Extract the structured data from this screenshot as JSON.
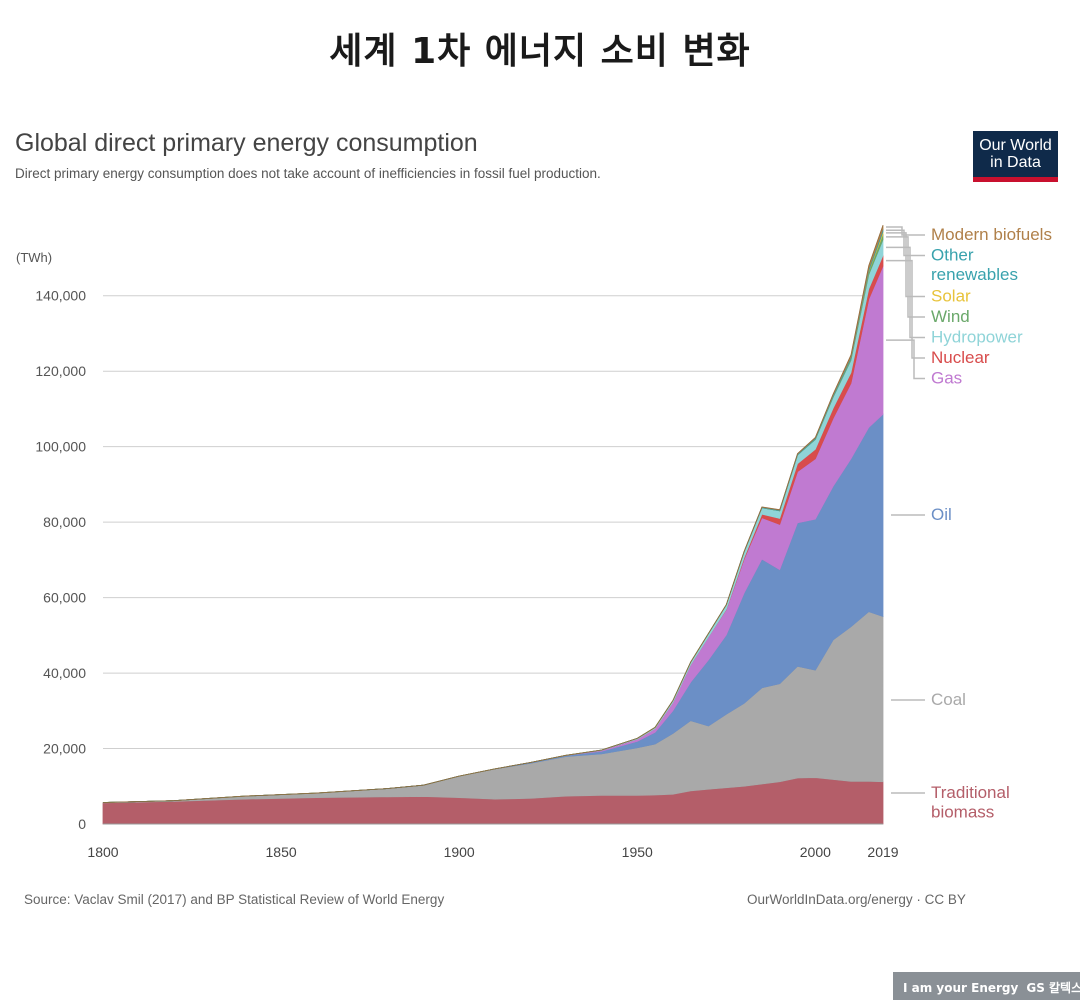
{
  "page_title": "세계 1차 에너지 소비 변화",
  "logo": {
    "line1": "Our World",
    "line2": "in Data"
  },
  "footer": {
    "source": "Source: Vaclav Smil (2017) and BP Statistical Review of World Energy",
    "url": "OurWorldInData.org/energy  · CC BY"
  },
  "brand": {
    "tagline": "I am your Energy",
    "name": "GS 칼텍스"
  },
  "colors": {
    "biomass": "#b45e69",
    "coal": "#a9a9a9",
    "oil": "#6b8fc6",
    "gas": "#c07ad1",
    "nuclear": "#d84c4c",
    "hydropower": "#8fd4d8",
    "wind": "#6aa86a",
    "solar": "#e8c33a",
    "other_renewables": "#39a2ad",
    "modern_biofuels": "#b0804a"
  },
  "chart_data": {
    "type": "area",
    "title": "Global direct primary energy consumption",
    "subtitle": "Direct primary energy consumption does not take account of inefficiencies in fossil fuel production.",
    "ylabel": "(TWh)",
    "ylim": [
      0,
      150000
    ],
    "xlim": [
      1800,
      2019
    ],
    "y_ticks": [
      0,
      20000,
      40000,
      60000,
      80000,
      100000,
      120000,
      140000
    ],
    "y_tick_labels": [
      "0",
      "20,000",
      "40,000",
      "60,000",
      "80,000",
      "100,000",
      "120,000",
      "140,000"
    ],
    "x_ticks": [
      1800,
      1850,
      1900,
      1950,
      2000,
      2019
    ],
    "x_tick_labels": [
      "1800",
      "1850",
      "1900",
      "1950",
      "2000",
      "2019"
    ],
    "grid": true,
    "x": [
      1800,
      1820,
      1840,
      1860,
      1880,
      1890,
      1900,
      1910,
      1920,
      1930,
      1940,
      1950,
      1955,
      1960,
      1965,
      1970,
      1975,
      1980,
      1985,
      1990,
      1995,
      2000,
      2005,
      2010,
      2015,
      2019
    ],
    "series": [
      {
        "key": "biomass",
        "name": "Traditional biomass",
        "values": [
          5600,
          6000,
          6600,
          7000,
          7200,
          7300,
          7000,
          6600,
          6800,
          7400,
          7600,
          7600,
          7700,
          7900,
          8800,
          9200,
          9600,
          10000,
          10600,
          11200,
          12200,
          12300,
          11800,
          11300,
          11300,
          11200
        ]
      },
      {
        "key": "coal",
        "name": "Coal",
        "values": [
          100,
          200,
          800,
          1200,
          2200,
          3000,
          5700,
          8000,
          9300,
          10500,
          11000,
          12600,
          13500,
          16100,
          18600,
          16800,
          19500,
          22000,
          25500,
          26000,
          29600,
          28500,
          37000,
          41000,
          45000,
          43800
        ]
      },
      {
        "key": "oil",
        "name": "Oil",
        "values": [
          0,
          0,
          0,
          0,
          0,
          0,
          0,
          0,
          200,
          300,
          700,
          1700,
          3100,
          6000,
          10200,
          17500,
          21000,
          29200,
          34100,
          30200,
          38000,
          40000,
          40700,
          44500,
          48800,
          53600
        ]
      },
      {
        "key": "gas",
        "name": "Gas",
        "values": [
          0,
          0,
          0,
          0,
          0,
          0,
          0,
          0,
          0,
          0,
          200,
          600,
          1000,
          2200,
          4600,
          6100,
          6700,
          9000,
          11000,
          12000,
          13600,
          16000,
          18000,
          20000,
          34000,
          39300
        ]
      },
      {
        "key": "nuclear",
        "name": "Nuclear",
        "values": [
          0,
          0,
          0,
          0,
          0,
          0,
          0,
          0,
          0,
          0,
          0,
          0,
          0,
          0,
          0,
          0,
          100,
          400,
          900,
          1600,
          2100,
          2500,
          2700,
          2800,
          2700,
          2800
        ]
      },
      {
        "key": "hydropower",
        "name": "Hydropower",
        "values": [
          0,
          0,
          0,
          0,
          0,
          0,
          0,
          0,
          0,
          0,
          100,
          200,
          300,
          500,
          700,
          900,
          1200,
          1500,
          1700,
          2000,
          2300,
          2600,
          2900,
          3300,
          3800,
          4200
        ]
      },
      {
        "key": "wind",
        "name": "Wind",
        "values": [
          0,
          0,
          0,
          0,
          0,
          0,
          0,
          0,
          0,
          0,
          0,
          0,
          0,
          0,
          0,
          0,
          0,
          0,
          0,
          0,
          0,
          100,
          200,
          350,
          800,
          1400
        ]
      },
      {
        "key": "solar",
        "name": "Solar",
        "values": [
          0,
          0,
          0,
          0,
          0,
          0,
          0,
          0,
          0,
          0,
          0,
          0,
          0,
          0,
          0,
          0,
          0,
          0,
          0,
          0,
          0,
          0,
          0,
          50,
          200,
          700
        ]
      },
      {
        "key": "other_renewables",
        "name": "Other renewables",
        "values": [
          0,
          0,
          0,
          0,
          0,
          0,
          0,
          0,
          0,
          0,
          0,
          0,
          0,
          0,
          0,
          0,
          0,
          100,
          150,
          200,
          250,
          300,
          400,
          500,
          600,
          700
        ]
      },
      {
        "key": "modern_biofuels",
        "name": "Modern biofuels",
        "values": [
          0,
          0,
          0,
          0,
          0,
          0,
          0,
          0,
          0,
          0,
          0,
          0,
          0,
          0,
          0,
          0,
          0,
          50,
          80,
          100,
          120,
          150,
          250,
          500,
          800,
          1000
        ]
      }
    ],
    "legend": [
      {
        "key": "modern_biofuels",
        "lines": [
          "Modern biofuels"
        ]
      },
      {
        "key": "other_renewables",
        "lines": [
          "Other",
          "renewables"
        ]
      },
      {
        "key": "solar",
        "lines": [
          "Solar"
        ]
      },
      {
        "key": "wind",
        "lines": [
          "Wind"
        ]
      },
      {
        "key": "hydropower",
        "lines": [
          "Hydropower"
        ]
      },
      {
        "key": "nuclear",
        "lines": [
          "Nuclear"
        ]
      },
      {
        "key": "gas",
        "lines": [
          "Gas"
        ]
      },
      {
        "key": "oil",
        "lines": [
          "Oil"
        ]
      },
      {
        "key": "coal",
        "lines": [
          "Coal"
        ]
      },
      {
        "key": "biomass",
        "lines": [
          "Traditional",
          "biomass"
        ]
      }
    ]
  }
}
